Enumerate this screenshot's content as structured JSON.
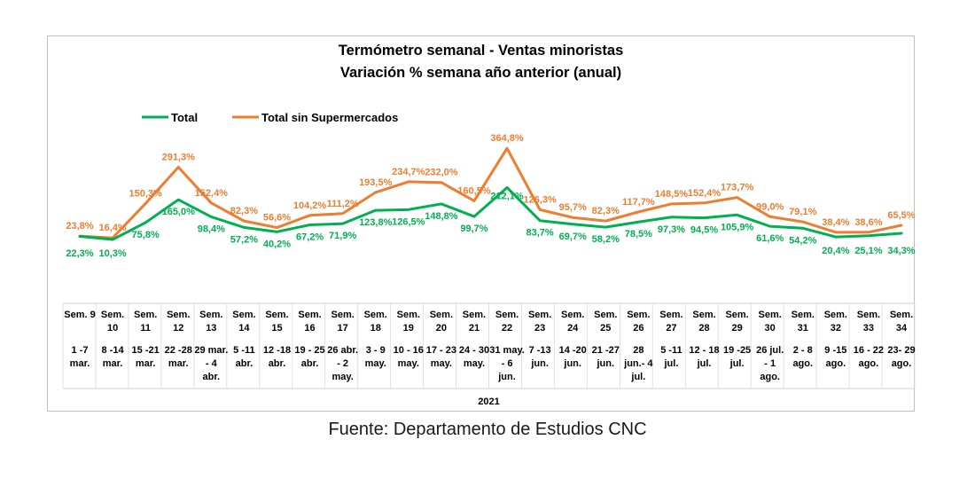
{
  "chart_data": {
    "type": "line",
    "title": "Termómetro semanal - Ventas minoristas",
    "subtitle": "Variación % semana año anterior (anual)",
    "legend_position": "top-left",
    "series": [
      {
        "name": "Total",
        "color": "#00b050",
        "values": [
          22.3,
          10.3,
          75.8,
          165.0,
          98.4,
          57.2,
          40.2,
          67.2,
          71.9,
          123.8,
          126.5,
          148.8,
          99.7,
          212.1,
          83.7,
          69.7,
          58.2,
          78.5,
          97.3,
          94.5,
          105.9,
          61.6,
          54.2,
          20.4,
          25.1,
          34.3
        ],
        "labels": [
          "22,3%",
          "10,3%",
          "75,8%",
          "165,0%",
          "98,4%",
          "57,2%",
          "40,2%",
          "67,2%",
          "71,9%",
          "123,8%",
          "126,5%",
          "148,8%",
          "99,7%",
          "212,1%",
          "83,7%",
          "69,7%",
          "58,2%",
          "78,5%",
          "97,3%",
          "94,5%",
          "105,9%",
          "61,6%",
          "54,2%",
          "20,4%",
          "25,1%",
          "34,3%"
        ]
      },
      {
        "name": "Total sin Supermercados",
        "color": "#ed7d31",
        "values": [
          23.8,
          16.4,
          150.3,
          291.3,
          152.4,
          82.3,
          56.6,
          104.2,
          111.2,
          193.5,
          234.7,
          232.0,
          160.5,
          364.8,
          126.3,
          95.7,
          82.3,
          117.7,
          148.5,
          152.4,
          173.7,
          99.0,
          79.1,
          38.4,
          38.6,
          65.5
        ],
        "labels": [
          "23,8%",
          "16,4%",
          "150,3%",
          "291,3%",
          "152,4%",
          "82,3%",
          "56,6%",
          "104,2%",
          "111,2%",
          "193,5%",
          "234,7%",
          "232,0%",
          "160,5%",
          "364,8%",
          "126,3%",
          "95,7%",
          "82,3%",
          "117,7%",
          "148,5%",
          "152,4%",
          "173,7%",
          "99,0%",
          "79,1%",
          "38,4%",
          "38,6%",
          "65,5%"
        ]
      }
    ],
    "categories": [
      {
        "week": "Sem. 9",
        "dates": "1 -7 mar."
      },
      {
        "week": "Sem. 10",
        "dates": "8 -14 mar."
      },
      {
        "week": "Sem. 11",
        "dates": "15 -21 mar."
      },
      {
        "week": "Sem. 12",
        "dates": "22 -28 mar."
      },
      {
        "week": "Sem. 13",
        "dates": "29 mar. - 4 abr."
      },
      {
        "week": "Sem. 14",
        "dates": "5 -11 abr."
      },
      {
        "week": "Sem. 15",
        "dates": "12 -18 abr."
      },
      {
        "week": "Sem. 16",
        "dates": "19 - 25 abr."
      },
      {
        "week": "Sem. 17",
        "dates": "26 abr. - 2 may."
      },
      {
        "week": "Sem. 18",
        "dates": "3 - 9 may."
      },
      {
        "week": "Sem. 19",
        "dates": "10 - 16 may."
      },
      {
        "week": "Sem. 20",
        "dates": "17 - 23 may."
      },
      {
        "week": "Sem. 21",
        "dates": "24 - 30 may."
      },
      {
        "week": "Sem. 22",
        "dates": "31 may. - 6 jun."
      },
      {
        "week": "Sem. 23",
        "dates": "7 -13 jun."
      },
      {
        "week": "Sem. 24",
        "dates": "14 -20 jun."
      },
      {
        "week": "Sem. 25",
        "dates": "21 -27 jun."
      },
      {
        "week": "Sem. 26",
        "dates": "28 jun.- 4 jul."
      },
      {
        "week": "Sem. 27",
        "dates": "5 -11 jul."
      },
      {
        "week": "Sem. 28",
        "dates": "12 - 18 jul."
      },
      {
        "week": "Sem. 29",
        "dates": "19 -25 jul."
      },
      {
        "week": "Sem. 30",
        "dates": "26 jul. - 1 ago."
      },
      {
        "week": "Sem. 31",
        "dates": "2 - 8 ago."
      },
      {
        "week": "Sem. 32",
        "dates": "9 -15 ago."
      },
      {
        "week": "Sem. 33",
        "dates": "16 - 22 ago."
      },
      {
        "week": "Sem. 34",
        "dates": "23- 29 ago."
      }
    ],
    "year_label": "2021",
    "grid": false
  },
  "source": "Fuente: Departamento de Estudios CNC"
}
